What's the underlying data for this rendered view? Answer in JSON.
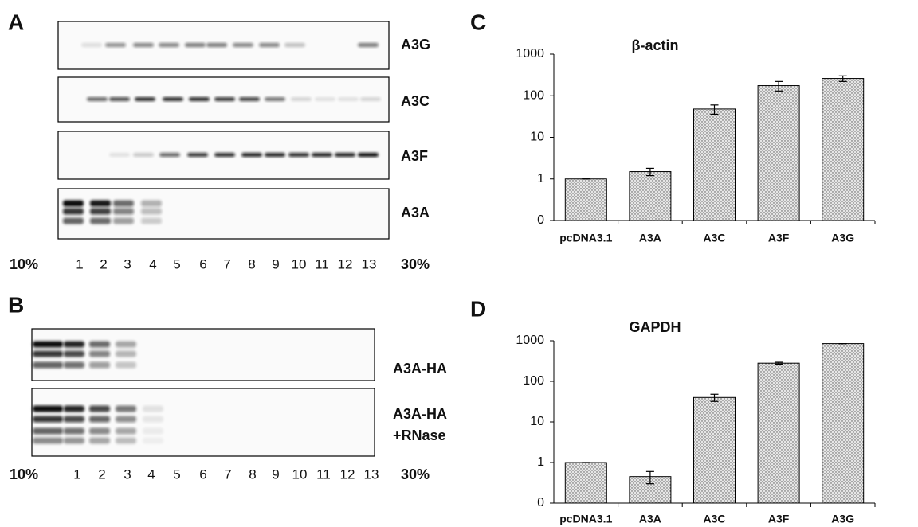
{
  "blots": [
    {
      "panel": "A",
      "rows": [
        [
          "A3G"
        ],
        [
          "A3C"
        ],
        [
          "A3F"
        ],
        [
          "A3A"
        ]
      ],
      "lanes": [
        "1",
        "2",
        "3",
        "4",
        "5",
        "6",
        "7",
        "8",
        "9",
        "10",
        "11",
        "12",
        "13"
      ],
      "start": "10%",
      "end": "30%"
    },
    {
      "panel": "B",
      "rows": [
        [
          "A3A-HA"
        ],
        [
          "A3A-HA",
          "+RNase"
        ]
      ],
      "lanes": [
        "1",
        "2",
        "3",
        "4",
        "5",
        "6",
        "7",
        "8",
        "9",
        "10",
        "11",
        "12",
        "13"
      ],
      "start": "10%",
      "end": "30%"
    }
  ],
  "chart_data": [
    {
      "type": "bar",
      "panel": "C",
      "title": "β-actin",
      "categories": [
        "pcDNA3.1",
        "A3A",
        "A3C",
        "A3F",
        "A3G"
      ],
      "values": [
        1,
        1.5,
        48,
        175,
        260
      ],
      "errors": [
        0,
        0.3,
        12,
        45,
        40
      ],
      "log": true,
      "ylim": [
        0.1,
        1000
      ],
      "yticks": [
        {
          "value": 0.1,
          "label": "0"
        },
        1,
        10,
        100,
        1000
      ],
      "color": "#e6e6e6"
    },
    {
      "type": "bar",
      "panel": "D",
      "title": "GAPDH",
      "categories": [
        "pcDNA3.1",
        "A3A",
        "A3C",
        "A3F",
        "A3G"
      ],
      "values": [
        1,
        0.45,
        40,
        280,
        850
      ],
      "errors": [
        0,
        0.15,
        8,
        15,
        0
      ],
      "log": true,
      "ylim": [
        0.1,
        1000
      ],
      "yticks": [
        {
          "value": 0.1,
          "label": "0"
        },
        1,
        10,
        100,
        1000
      ],
      "color": "#e6e6e6"
    }
  ]
}
